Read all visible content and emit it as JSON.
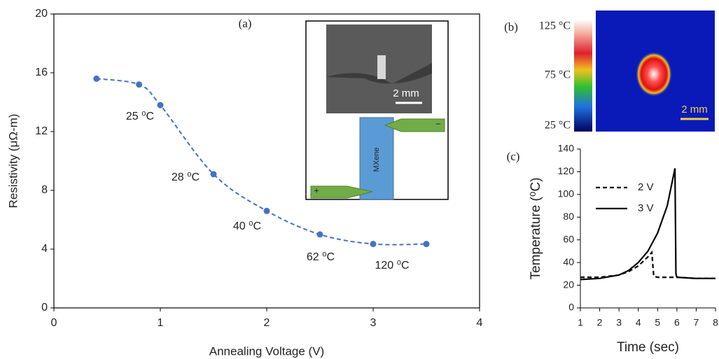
{
  "chart_data": [
    {
      "type": "line",
      "title": "(a)",
      "x_label": "Annealing Voltage (V)",
      "y_label": "Resistivity (μΩ-m)",
      "xlim": [
        0,
        4
      ],
      "xticks": [
        0,
        1,
        2,
        3,
        4
      ],
      "ylim": [
        0,
        20
      ],
      "yticks": [
        0,
        4,
        8,
        12,
        16,
        20
      ],
      "frame": true,
      "smooth": true,
      "markers": true,
      "series": [
        {
          "color": "#4472c4",
          "dash": true,
          "x": [
            0.4,
            0.8,
            1.0,
            1.5,
            2.0,
            2.5,
            3.0,
            3.5
          ],
          "values": [
            15.6,
            15.2,
            13.8,
            9.1,
            6.6,
            5.0,
            4.35,
            4.35
          ]
        }
      ],
      "annotations": [
        "25 ⁰C",
        "28 ⁰C",
        "40 ⁰C",
        "62 ⁰C",
        "120 ⁰C"
      ]
    },
    {
      "type": "line",
      "title": "(c)",
      "x_label": "Time (sec)",
      "y_label": "Temperature (⁰C)",
      "xlim": [
        1,
        8
      ],
      "xticks": [
        1,
        2,
        3,
        4,
        5,
        6,
        7,
        8
      ],
      "ylim": [
        0,
        140
      ],
      "yticks": [
        0,
        20,
        40,
        60,
        80,
        100,
        120,
        140
      ],
      "frame": false,
      "smooth": false,
      "markers": false,
      "legend": "top-left",
      "series": [
        {
          "name": "2 V",
          "color": "#000000",
          "dash": true,
          "x": [
            1,
            2,
            3,
            3.5,
            4,
            4.5,
            4.7,
            4.8,
            5,
            6,
            7,
            8
          ],
          "values": [
            27,
            27,
            29,
            32,
            37,
            45,
            49,
            28,
            27,
            27,
            26,
            26
          ]
        },
        {
          "name": "3 V",
          "color": "#000000",
          "dash": false,
          "x": [
            1,
            2,
            3,
            3.5,
            4,
            4.5,
            5,
            5.5,
            5.9,
            5.95,
            6,
            7,
            8
          ],
          "values": [
            25,
            26,
            29,
            33,
            40,
            50,
            66,
            90,
            123,
            30,
            27,
            26,
            26
          ]
        }
      ]
    }
  ],
  "inset": {
    "scale_label": "2 mm",
    "device_label": "MXene",
    "plus": "+",
    "minus": "−"
  },
  "panel_b": {
    "label": "(b)",
    "colorbar_labels": [
      "125 °C",
      "75 °C",
      "25 °C"
    ],
    "scale_label": "2 mm"
  }
}
